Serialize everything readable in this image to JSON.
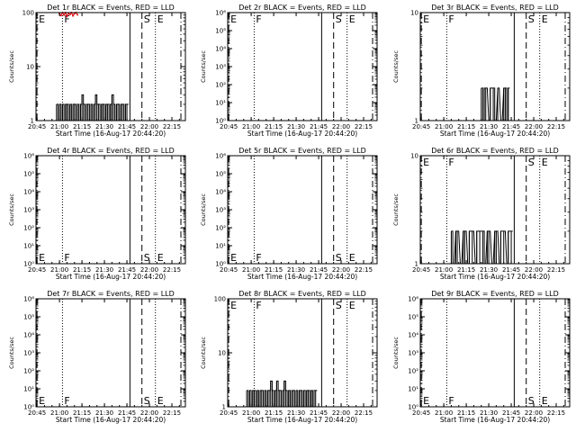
{
  "chart_data": [
    {
      "type": "line",
      "title": "Det 1r BLACK = Events, RED = LLD",
      "xlabel": "Start Time (16-Aug-17 20:44:20)",
      "ylabel": "Counts/sec",
      "x_tick_labels": [
        "20:45",
        "21:00",
        "21:15",
        "21:30",
        "21:45",
        "22:00",
        "22:15"
      ],
      "y_scale": "log",
      "ylim": [
        1,
        100
      ],
      "y_tick_labels": [
        "1",
        "10",
        "100"
      ],
      "vertical_markers": [
        {
          "label": "E",
          "time": "20:45",
          "style": "dash-dot"
        },
        {
          "label": "F",
          "time": "21:02",
          "style": "dotted"
        },
        {
          "label": "",
          "time": "21:47",
          "style": "solid"
        },
        {
          "label": "S",
          "time": "21:55",
          "style": "dashed"
        },
        {
          "label": "E",
          "time": "22:04",
          "style": "dotted"
        },
        {
          "label": "",
          "time": "22:21",
          "style": "dash-dot"
        }
      ],
      "series": [
        {
          "name": "Events",
          "color": "#000000",
          "x": [
            "20:58",
            "20:59",
            "21:00",
            "21:01",
            "21:02",
            "21:03",
            "21:04",
            "21:05",
            "21:06",
            "21:07",
            "21:08",
            "21:09",
            "21:10",
            "21:11",
            "21:12",
            "21:13",
            "21:14",
            "21:15",
            "21:16",
            "21:17",
            "21:18",
            "21:19",
            "21:20",
            "21:21",
            "21:22",
            "21:23",
            "21:24",
            "21:25",
            "21:26",
            "21:27",
            "21:28",
            "21:29",
            "21:30",
            "21:31",
            "21:32",
            "21:33",
            "21:34",
            "21:35",
            "21:36",
            "21:37",
            "21:38",
            "21:39",
            "21:40",
            "21:41",
            "21:42",
            "21:43",
            "21:44",
            "21:45"
          ],
          "y": [
            2,
            1,
            2,
            1,
            2,
            1,
            2,
            2,
            1,
            2,
            1,
            2,
            2,
            1,
            2,
            1,
            2,
            3,
            2,
            1,
            2,
            2,
            1,
            2,
            1,
            2,
            3,
            2,
            2,
            1,
            2,
            2,
            1,
            2,
            2,
            1,
            2,
            3,
            2,
            1,
            2,
            2,
            1,
            2,
            2,
            1,
            2,
            2
          ]
        },
        {
          "name": "LLD",
          "color": "#e8141c",
          "x": [
            "21:00",
            "21:01",
            "21:02",
            "21:03",
            "21:04",
            "21:05",
            "21:06",
            "21:07",
            "21:08",
            "21:09",
            "21:10",
            "21:11",
            "21:12"
          ],
          "y": [
            95,
            88,
            100,
            90,
            100,
            85,
            98,
            92,
            100,
            87,
            96,
            100,
            91
          ]
        }
      ]
    },
    {
      "type": "line",
      "title": "Det 2r BLACK = Events, RED = LLD",
      "xlabel": "Start Time (16-Aug-17 20:44:20)",
      "ylabel": "Counts/sec",
      "x_tick_labels": [
        "20:45",
        "21:00",
        "21:15",
        "21:30",
        "21:45",
        "22:00",
        "22:15"
      ],
      "y_scale": "log",
      "ylim": [
        1,
        1000000
      ],
      "y_tick_labels": [
        "10⁰",
        "10¹",
        "10²",
        "10³",
        "10⁴",
        "10⁵",
        "10⁶"
      ],
      "vertical_markers": [
        {
          "label": "E",
          "time": "20:45",
          "style": "dash-dot"
        },
        {
          "label": "F",
          "time": "21:02",
          "style": "dotted"
        },
        {
          "label": "",
          "time": "21:47",
          "style": "solid"
        },
        {
          "label": "S",
          "time": "21:55",
          "style": "dashed"
        },
        {
          "label": "E",
          "time": "22:04",
          "style": "dotted"
        },
        {
          "label": "",
          "time": "22:21",
          "style": "dash-dot"
        }
      ],
      "series": []
    },
    {
      "type": "line",
      "title": "Det 3r BLACK = Events, RED = LLD",
      "xlabel": "Start Time (16-Aug-17 20:44:20)",
      "ylabel": "Counts/sec",
      "x_tick_labels": [
        "20:45",
        "21:00",
        "21:15",
        "21:30",
        "21:45",
        "22:00",
        "22:15"
      ],
      "y_scale": "log",
      "ylim": [
        1,
        10
      ],
      "y_tick_labels": [
        "1",
        "10"
      ],
      "vertical_markers": [
        {
          "label": "E",
          "time": "20:45",
          "style": "dash-dot"
        },
        {
          "label": "F",
          "time": "21:02",
          "style": "dotted"
        },
        {
          "label": "",
          "time": "21:47",
          "style": "solid"
        },
        {
          "label": "S",
          "time": "21:55",
          "style": "dashed"
        },
        {
          "label": "E",
          "time": "22:04",
          "style": "dotted"
        },
        {
          "label": "",
          "time": "22:21",
          "style": "dash-dot"
        }
      ],
      "series": [
        {
          "name": "Events",
          "color": "#000000",
          "x": [
            "21:25",
            "21:26",
            "21:27",
            "21:28",
            "21:30",
            "21:31",
            "21:33",
            "21:34",
            "21:36",
            "21:38",
            "21:40",
            "21:41",
            "21:42",
            "21:43"
          ],
          "y": [
            2,
            1,
            2,
            2,
            1,
            2,
            2,
            1,
            2,
            1,
            2,
            2,
            1,
            2
          ]
        }
      ]
    },
    {
      "type": "line",
      "title": "Det 4r BLACK = Events, RED = LLD",
      "xlabel": "Start Time (16-Aug-17 20:44:20)",
      "ylabel": "Counts/sec",
      "x_tick_labels": [
        "20:45",
        "21:00",
        "21:15",
        "21:30",
        "21:45",
        "22:00",
        "22:15"
      ],
      "y_scale": "log",
      "ylim": [
        1,
        1000000
      ],
      "y_tick_labels": [
        "10⁰",
        "10¹",
        "10²",
        "10³",
        "10⁴",
        "10⁵",
        "10⁶"
      ],
      "vertical_markers": [
        {
          "label": "E",
          "time": "20:45",
          "style": "dash-dot"
        },
        {
          "label": "F",
          "time": "21:02",
          "style": "dotted"
        },
        {
          "label": "",
          "time": "21:47",
          "style": "solid"
        },
        {
          "label": "S",
          "time": "21:55",
          "style": "dashed"
        },
        {
          "label": "E",
          "time": "22:04",
          "style": "dotted"
        },
        {
          "label": "",
          "time": "22:21",
          "style": "dash-dot"
        }
      ],
      "series": []
    },
    {
      "type": "line",
      "title": "Det 5r BLACK = Events, RED = LLD",
      "xlabel": "Start Time (16-Aug-17 20:44:20)",
      "ylabel": "Counts/sec",
      "x_tick_labels": [
        "20:45",
        "21:00",
        "21:15",
        "21:30",
        "21:45",
        "22:00",
        "22:15"
      ],
      "y_scale": "log",
      "ylim": [
        1,
        1000000
      ],
      "y_tick_labels": [
        "10⁰",
        "10¹",
        "10²",
        "10³",
        "10⁴",
        "10⁵",
        "10⁶"
      ],
      "vertical_markers": [
        {
          "label": "E",
          "time": "20:45",
          "style": "dash-dot"
        },
        {
          "label": "F",
          "time": "21:02",
          "style": "dotted"
        },
        {
          "label": "",
          "time": "21:47",
          "style": "solid"
        },
        {
          "label": "S",
          "time": "21:55",
          "style": "dashed"
        },
        {
          "label": "E",
          "time": "22:04",
          "style": "dotted"
        },
        {
          "label": "",
          "time": "22:21",
          "style": "dash-dot"
        }
      ],
      "series": []
    },
    {
      "type": "line",
      "title": "Det 6r BLACK = Events, RED = LLD",
      "xlabel": "Start Time (16-Aug-17 20:44:20)",
      "ylabel": "Counts/sec",
      "x_tick_labels": [
        "20:45",
        "21:00",
        "21:15",
        "21:30",
        "21:45",
        "22:00",
        "22:15"
      ],
      "y_scale": "log",
      "ylim": [
        1,
        10
      ],
      "y_tick_labels": [
        "1",
        "10"
      ],
      "vertical_markers": [
        {
          "label": "E",
          "time": "20:45",
          "style": "dash-dot"
        },
        {
          "label": "F",
          "time": "21:02",
          "style": "dotted"
        },
        {
          "label": "",
          "time": "21:47",
          "style": "solid"
        },
        {
          "label": "S",
          "time": "21:55",
          "style": "dashed"
        },
        {
          "label": "E",
          "time": "22:04",
          "style": "dotted"
        },
        {
          "label": "",
          "time": "22:21",
          "style": "dash-dot"
        }
      ],
      "series": [
        {
          "name": "Events",
          "color": "#000000",
          "x": [
            "21:05",
            "21:06",
            "21:08",
            "21:09",
            "21:11",
            "21:13",
            "21:14",
            "21:16",
            "21:17",
            "21:19",
            "21:21",
            "21:22",
            "21:24",
            "21:26",
            "21:27",
            "21:29",
            "21:30",
            "21:32",
            "21:34",
            "21:35",
            "21:37",
            "21:38",
            "21:40",
            "21:42",
            "21:43",
            "21:45"
          ],
          "y": [
            2,
            1,
            2,
            2,
            1,
            2,
            2,
            1,
            2,
            2,
            1,
            2,
            2,
            2,
            1,
            2,
            2,
            1,
            2,
            2,
            1,
            2,
            2,
            1,
            2,
            2
          ]
        }
      ]
    },
    {
      "type": "line",
      "title": "Det 7r BLACK = Events, RED = LLD",
      "xlabel": "Start Time (16-Aug-17 20:44:20)",
      "ylabel": "Counts/sec",
      "x_tick_labels": [
        "20:45",
        "21:00",
        "21:15",
        "21:30",
        "21:45",
        "22:00",
        "22:15"
      ],
      "y_scale": "log",
      "ylim": [
        1,
        1000000
      ],
      "y_tick_labels": [
        "10⁰",
        "10¹",
        "10²",
        "10³",
        "10⁴",
        "10⁵",
        "10⁶"
      ],
      "vertical_markers": [
        {
          "label": "E",
          "time": "20:45",
          "style": "dash-dot"
        },
        {
          "label": "F",
          "time": "21:02",
          "style": "dotted"
        },
        {
          "label": "",
          "time": "21:47",
          "style": "solid"
        },
        {
          "label": "S",
          "time": "21:55",
          "style": "dashed"
        },
        {
          "label": "E",
          "time": "22:04",
          "style": "dotted"
        },
        {
          "label": "",
          "time": "22:21",
          "style": "dash-dot"
        }
      ],
      "series": []
    },
    {
      "type": "line",
      "title": "Det 8r BLACK = Events, RED = LLD",
      "xlabel": "Start Time (16-Aug-17 20:44:20)",
      "ylabel": "Counts/sec",
      "x_tick_labels": [
        "20:45",
        "21:00",
        "21:15",
        "21:30",
        "21:45",
        "22:00",
        "22:15"
      ],
      "y_scale": "log",
      "ylim": [
        1,
        100
      ],
      "y_tick_labels": [
        "1",
        "10",
        "100"
      ],
      "vertical_markers": [
        {
          "label": "E",
          "time": "20:45",
          "style": "dash-dot"
        },
        {
          "label": "F",
          "time": "21:02",
          "style": "dotted"
        },
        {
          "label": "",
          "time": "21:47",
          "style": "solid"
        },
        {
          "label": "S",
          "time": "21:55",
          "style": "dashed"
        },
        {
          "label": "E",
          "time": "22:04",
          "style": "dotted"
        },
        {
          "label": "",
          "time": "22:21",
          "style": "dash-dot"
        }
      ],
      "series": [
        {
          "name": "Events",
          "color": "#000000",
          "x": [
            "20:57",
            "20:58",
            "20:59",
            "21:00",
            "21:01",
            "21:02",
            "21:03",
            "21:04",
            "21:05",
            "21:06",
            "21:07",
            "21:08",
            "21:09",
            "21:10",
            "21:11",
            "21:12",
            "21:13",
            "21:14",
            "21:15",
            "21:16",
            "21:17",
            "21:18",
            "21:19",
            "21:20",
            "21:21",
            "21:22",
            "21:23",
            "21:24",
            "21:25",
            "21:26",
            "21:27",
            "21:28",
            "21:29",
            "21:30",
            "21:31",
            "21:32",
            "21:33",
            "21:34",
            "21:35",
            "21:36",
            "21:37",
            "21:38",
            "21:39",
            "21:40",
            "21:41",
            "21:42",
            "21:43"
          ],
          "y": [
            2,
            1,
            2,
            1,
            2,
            2,
            1,
            2,
            1,
            2,
            2,
            1,
            2,
            1,
            2,
            2,
            3,
            2,
            1,
            2,
            3,
            2,
            2,
            1,
            2,
            3,
            2,
            1,
            2,
            1,
            2,
            2,
            1,
            2,
            1,
            2,
            2,
            1,
            2,
            1,
            2,
            2,
            1,
            2,
            1,
            2,
            2
          ]
        }
      ]
    },
    {
      "type": "line",
      "title": "Det 9r BLACK = Events, RED = LLD",
      "xlabel": "Start Time (16-Aug-17 20:44:20)",
      "ylabel": "Counts/sec",
      "x_tick_labels": [
        "20:45",
        "21:00",
        "21:15",
        "21:30",
        "21:45",
        "22:00",
        "22:15"
      ],
      "y_scale": "log",
      "ylim": [
        1,
        1000000
      ],
      "y_tick_labels": [
        "10⁰",
        "10¹",
        "10²",
        "10³",
        "10⁴",
        "10⁵",
        "10⁶"
      ],
      "vertical_markers": [
        {
          "label": "E",
          "time": "20:45",
          "style": "dash-dot"
        },
        {
          "label": "F",
          "time": "21:02",
          "style": "dotted"
        },
        {
          "label": "",
          "time": "21:47",
          "style": "solid"
        },
        {
          "label": "S",
          "time": "21:55",
          "style": "dashed"
        },
        {
          "label": "E",
          "time": "22:04",
          "style": "dotted"
        },
        {
          "label": "",
          "time": "22:21",
          "style": "dash-dot"
        }
      ],
      "series": []
    }
  ]
}
